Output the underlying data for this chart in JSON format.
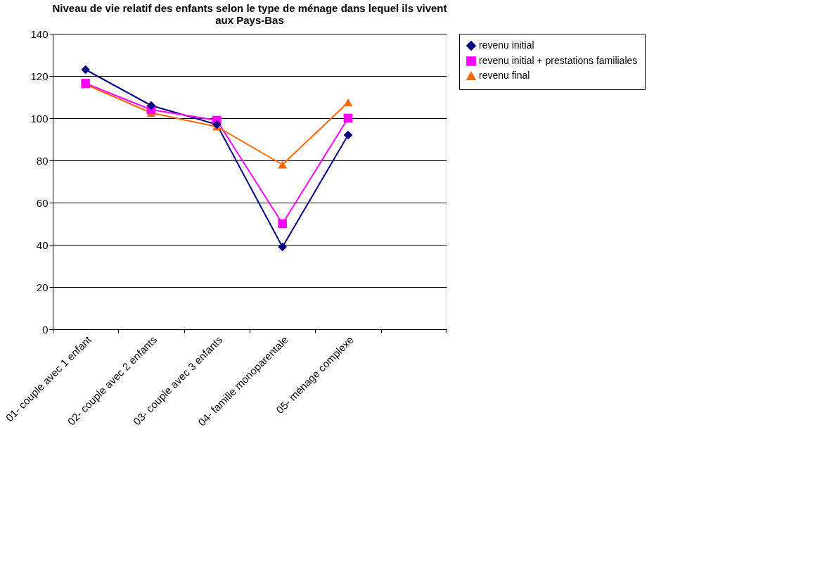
{
  "chart_data": {
    "type": "line",
    "title": [
      "Niveau de vie relatif des enfants selon le type de ménage dans lequel ils vivent",
      "aux Pays-Bas"
    ],
    "categories": [
      "01- couple avec 1 enfant",
      "02- couple avec 2 enfants",
      "03- couple avec 3 enfants",
      "04- famille monoparentale",
      "05- ménage complexe",
      null
    ],
    "series": [
      {
        "name": "revenu initial",
        "color": "#000080",
        "marker": "diamond",
        "values": [
          123,
          106,
          97,
          39,
          92,
          null
        ]
      },
      {
        "name": "revenu initial + prestations familiales",
        "color": "#ff00ff",
        "marker": "square",
        "values": [
          116.5,
          104,
          99,
          50,
          100,
          null
        ]
      },
      {
        "name": "revenu final",
        "color": "#ff6600",
        "marker": "triangle",
        "values": [
          116,
          102.5,
          96,
          78,
          107.5,
          null
        ]
      }
    ],
    "ylim": [
      0,
      140
    ],
    "yticks": [
      0,
      20,
      40,
      60,
      80,
      100,
      120,
      140
    ],
    "grid": "y",
    "legend": "right"
  }
}
